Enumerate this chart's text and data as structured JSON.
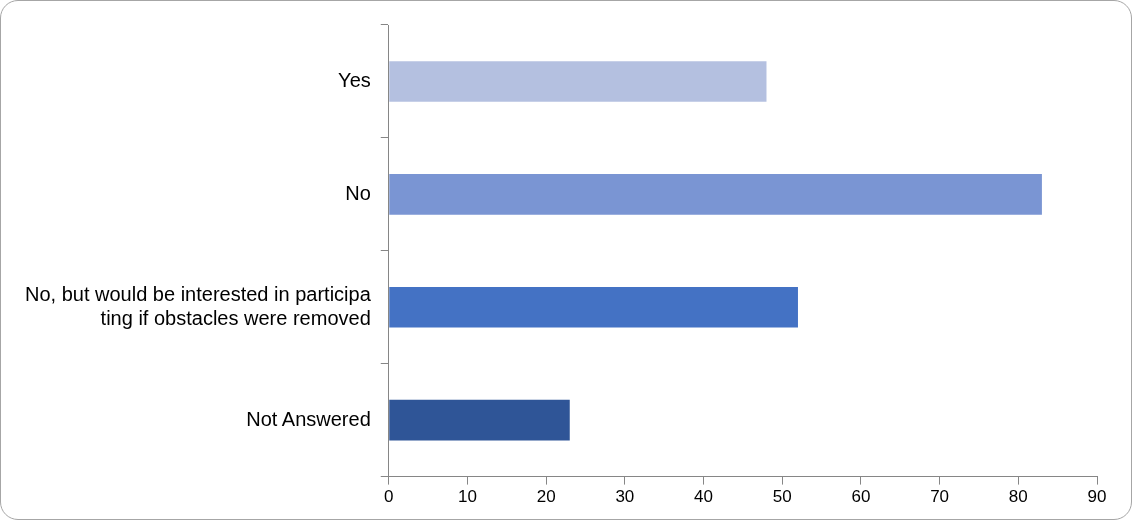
{
  "chart_data": {
    "type": "bar",
    "orientation": "horizontal",
    "categories": [
      "Yes",
      "No",
      "No, but would be interested in participating if obstacles were removed",
      "Not Answered"
    ],
    "values": [
      48,
      83,
      52,
      23
    ],
    "colors": [
      "#b4c0e0",
      "#7a95d3",
      "#4472c4",
      "#2f5597"
    ],
    "xlim": [
      0,
      90
    ],
    "xticks": [
      0,
      10,
      20,
      30,
      40,
      50,
      60,
      70,
      80,
      90
    ],
    "grid": false,
    "legend": false
  }
}
